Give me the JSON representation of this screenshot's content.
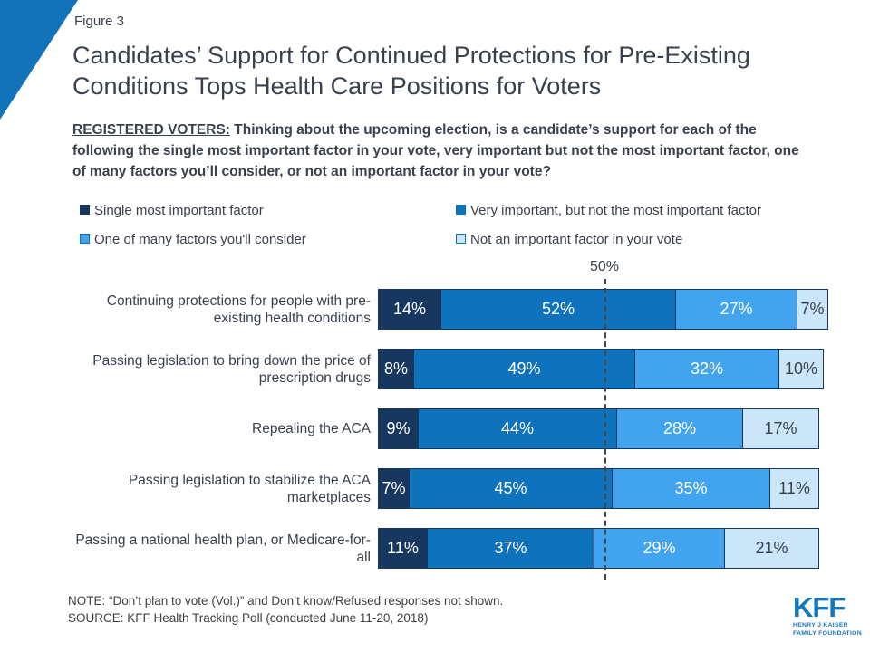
{
  "figure_label": "Figure 3",
  "title": "Candidates’ Support for Continued Protections for Pre-Existing Conditions Tops Health Care Positions for Voters",
  "subtitle": {
    "prefix": "REGISTERED VOTERS:",
    "text": "Thinking about the upcoming election, is a candidate’s support for each of the following the single most important factor in your vote, very important but not the most important factor, one of many factors you’ll consider, or not an important factor in your vote?"
  },
  "chart_data": {
    "type": "bar",
    "stacked": true,
    "orientation": "horizontal",
    "unit": "%",
    "xlim": [
      0,
      100
    ],
    "grid": false,
    "reference_line": {
      "value": 50,
      "label": "50%"
    },
    "categories": [
      "Continuing protections for people with pre-existing health conditions",
      "Passing legislation to bring down the price of prescription drugs",
      "Repealing the ACA",
      "Passing legislation to stabilize the ACA marketplaces",
      "Passing a national health plan, or Medicare-for-all"
    ],
    "series": [
      {
        "name": "Single most important factor",
        "color": "#17375E",
        "swatch_border": "#17375E",
        "label_color": "#FFFFFF",
        "values": [
          14,
          8,
          9,
          7,
          11
        ]
      },
      {
        "name": "Very important, but not the most important factor",
        "color": "#0E72BD",
        "swatch_border": "#0E72BD",
        "label_color": "#FFFFFF",
        "values": [
          52,
          49,
          44,
          45,
          37
        ]
      },
      {
        "name": "One of many factors you'll consider",
        "color": "#42A3EF",
        "swatch_border": "#0E72BD",
        "label_color": "#FFFFFF",
        "values": [
          27,
          32,
          28,
          35,
          29
        ]
      },
      {
        "name": "Not an important factor in your vote",
        "color": "#CBE5F9",
        "swatch_border": "#0E72BD",
        "label_color": "#39414D",
        "values": [
          7,
          10,
          17,
          11,
          21
        ]
      }
    ],
    "legend_position": "top"
  },
  "note": "NOTE: “Don’t plan to vote (Vol.)” and Don’t know/Refused responses not shown.",
  "source": "SOURCE: KFF Health Tracking Poll (conducted June 11-20, 2018)",
  "logo": {
    "text": "KFF",
    "subtext_line1": "HENRY J KAISER",
    "subtext_line2": "FAMILY FOUNDATION"
  },
  "colors": {
    "accent_triangle": "#1373BA",
    "bar_border": "#16365C",
    "title_text": "#39414D",
    "logo_blue": "#1476BB",
    "reference_line": "#474747"
  }
}
